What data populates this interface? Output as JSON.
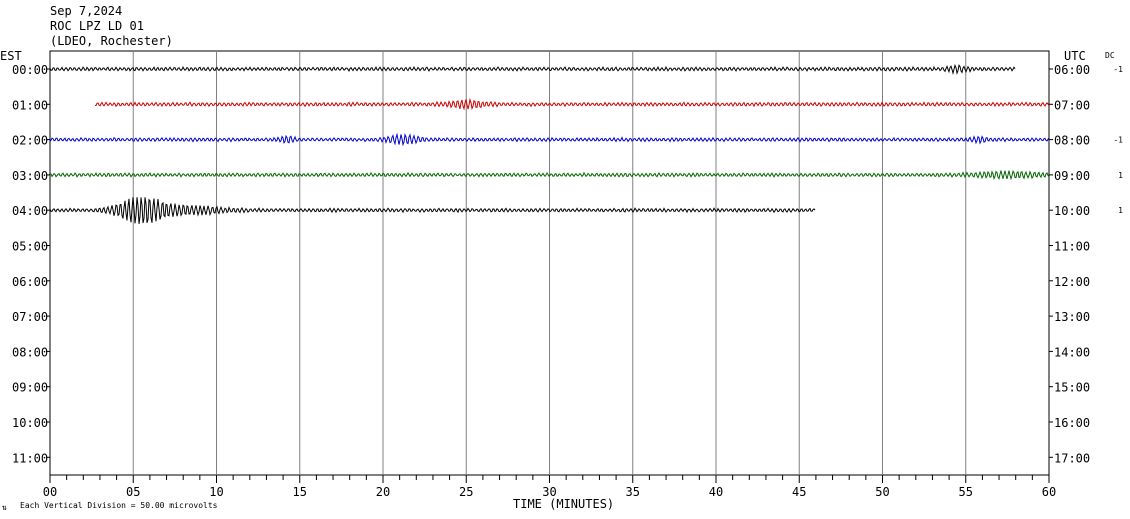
{
  "header": {
    "date": "Sep 7,2024",
    "station": "ROC LPZ LD 01",
    "network": "(LDEO, Rochester)"
  },
  "left_zone_label": "EST",
  "right_zone_label": "UTC",
  "dc_label": "DC",
  "footer": {
    "scale_note": "Each Vertical Division =   50.00 microvolts"
  },
  "chart_data": {
    "type": "line",
    "title": "ROC LPZ LD 01",
    "xlabel": "TIME (MINUTES)",
    "ylabel": "",
    "xlim": [
      0,
      60
    ],
    "x_ticks": [
      "00",
      "05",
      "10",
      "15",
      "20",
      "25",
      "30",
      "35",
      "40",
      "45",
      "50",
      "55",
      "60"
    ],
    "grid": true,
    "rows_est": [
      "00:00",
      "01:00",
      "02:00",
      "03:00",
      "04:00",
      "05:00",
      "06:00",
      "07:00",
      "08:00",
      "09:00",
      "10:00",
      "11:00"
    ],
    "rows_utc": [
      "06:00",
      "07:00",
      "08:00",
      "09:00",
      "10:00",
      "11:00",
      "12:00",
      "13:00",
      "14:00",
      "15:00",
      "16:00",
      "17:00"
    ],
    "dc_offsets": [
      "-1",
      "",
      "-1",
      "1",
      "1",
      "",
      "",
      "",
      "",
      "",
      "",
      ""
    ],
    "traces": [
      {
        "row": 0,
        "start_min": 0,
        "end_min": 58,
        "color": "#000000",
        "bursts": [
          [
            54.5,
            0.6,
            1.6
          ]
        ]
      },
      {
        "row": 1,
        "start_min": 2.7,
        "end_min": 60,
        "color": "#cc0000",
        "bursts": [
          [
            25,
            1.2,
            2.0
          ]
        ]
      },
      {
        "row": 2,
        "start_min": 0,
        "end_min": 60,
        "color": "#0000cc",
        "bursts": [
          [
            21.2,
            1.0,
            2.4
          ],
          [
            14.2,
            0.5,
            1.5
          ],
          [
            55.8,
            0.5,
            1.4
          ]
        ]
      },
      {
        "row": 3,
        "start_min": 0,
        "end_min": 60,
        "color": "#006600",
        "bursts": [
          [
            57.5,
            2.0,
            1.6
          ]
        ]
      },
      {
        "row": 4,
        "start_min": 0,
        "end_min": 46,
        "color": "#000000",
        "bursts": [
          [
            5.5,
            1.5,
            8.0
          ],
          [
            8.5,
            2.0,
            2.2
          ]
        ]
      }
    ]
  }
}
